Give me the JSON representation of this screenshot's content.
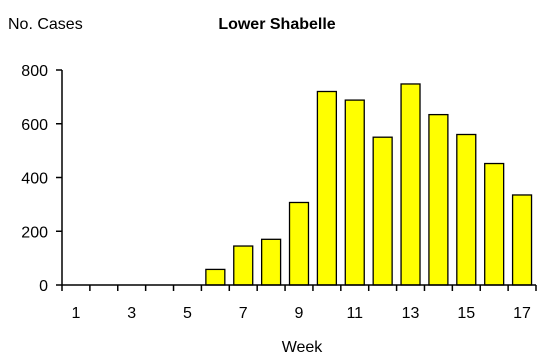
{
  "chart_data": {
    "type": "bar",
    "title": "Lower Shabelle",
    "ylabel": "No. Cases",
    "xlabel": "Week",
    "categories": [
      "1",
      "2",
      "3",
      "4",
      "5",
      "6",
      "7",
      "8",
      "9",
      "10",
      "11",
      "12",
      "13",
      "14",
      "15",
      "16",
      "17"
    ],
    "values": [
      0,
      0,
      0,
      0,
      0,
      58,
      145,
      170,
      307,
      720,
      688,
      550,
      748,
      634,
      560,
      452,
      335
    ],
    "xticks_labeled": [
      "1",
      "3",
      "5",
      "7",
      "9",
      "11",
      "13",
      "15",
      "17"
    ],
    "yticks": [
      0,
      200,
      400,
      600,
      800
    ],
    "ylim": [
      0,
      800
    ],
    "grid": false,
    "legend": "none",
    "bar_color": "#ffff00",
    "bar_edge_color": "#000000"
  }
}
